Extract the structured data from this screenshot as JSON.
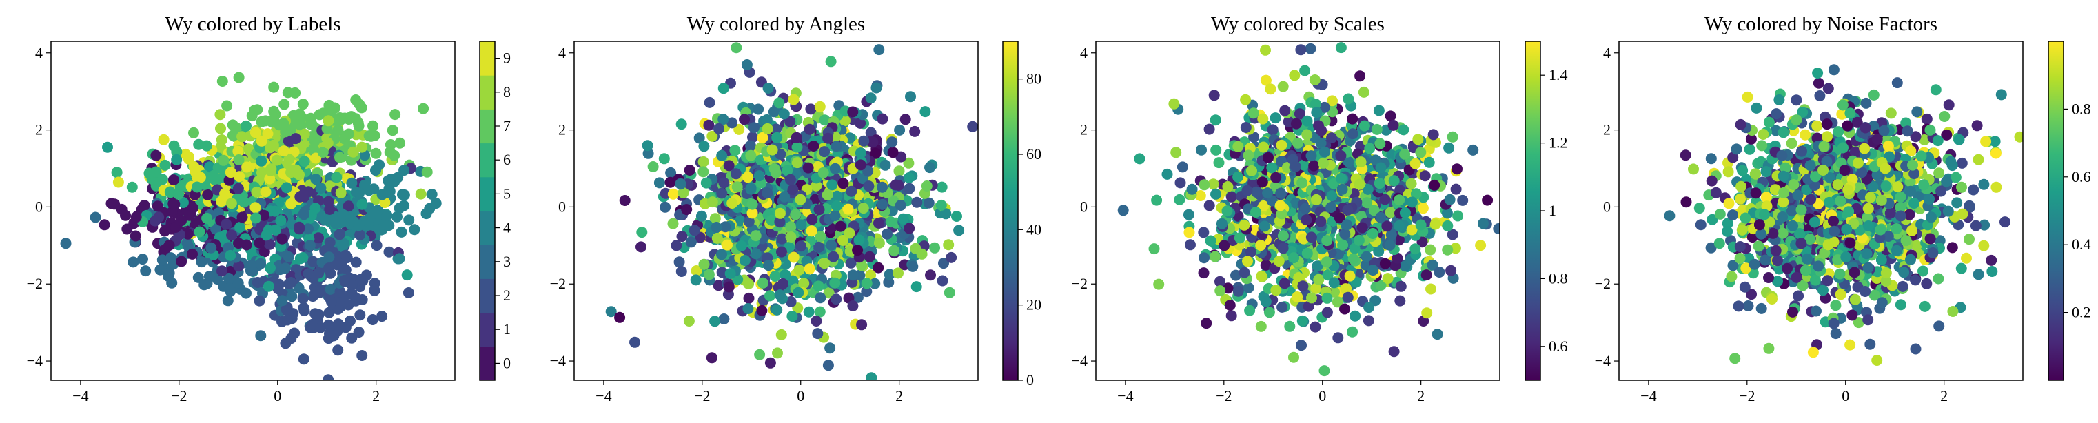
{
  "chart_data": [
    {
      "type": "scatter",
      "title": "Wy colored by Labels",
      "xlabel": "",
      "ylabel": "",
      "xlim": [
        -4.6,
        3.6
      ],
      "ylim": [
        -4.5,
        4.3
      ],
      "xticks": [
        -4,
        -2,
        0,
        2
      ],
      "yticks": [
        -4,
        -2,
        0,
        2,
        4
      ],
      "colorbar": {
        "kind": "discrete",
        "min": -0.5,
        "max": 9.5,
        "ticks": [
          0,
          1,
          2,
          3,
          4,
          5,
          6,
          7,
          8,
          9
        ]
      },
      "point_color": "class label (0-9)",
      "n_points_approx": 2000,
      "clusters": [
        {
          "label": 0,
          "center": [
            -1.6,
            -0.3
          ],
          "spread": [
            0.8,
            0.5
          ]
        },
        {
          "label": 1,
          "center": [
            0.0,
            0.1
          ],
          "spread": [
            1.0,
            0.8
          ]
        },
        {
          "label": 2,
          "center": [
            1.0,
            -2.2
          ],
          "spread": [
            0.6,
            0.8
          ]
        },
        {
          "label": 3,
          "center": [
            -0.8,
            -1.2
          ],
          "spread": [
            1.0,
            0.7
          ]
        },
        {
          "label": 4,
          "center": [
            1.6,
            -0.1
          ],
          "spread": [
            0.9,
            0.6
          ]
        },
        {
          "label": 5,
          "center": [
            -0.3,
            -0.3
          ],
          "spread": [
            1.0,
            0.7
          ]
        },
        {
          "label": 6,
          "center": [
            -1.0,
            0.6
          ],
          "spread": [
            0.9,
            0.5
          ]
        },
        {
          "label": 7,
          "center": [
            0.8,
            1.9
          ],
          "spread": [
            1.0,
            0.5
          ]
        },
        {
          "label": 8,
          "center": [
            0.2,
            1.2
          ],
          "spread": [
            0.8,
            0.5
          ]
        },
        {
          "label": 9,
          "center": [
            -0.7,
            0.8
          ],
          "spread": [
            0.8,
            0.5
          ]
        }
      ]
    },
    {
      "type": "scatter",
      "title": "Wy colored by Angles",
      "xlabel": "",
      "ylabel": "",
      "xlim": [
        -4.6,
        3.6
      ],
      "ylim": [
        -4.5,
        4.3
      ],
      "xticks": [
        -4,
        -2,
        0,
        2
      ],
      "yticks": [
        -4,
        -2,
        0,
        2,
        4
      ],
      "colorbar": {
        "kind": "continuous",
        "min": 0,
        "max": 90,
        "ticks": [
          0,
          20,
          40,
          60,
          80
        ]
      },
      "point_color": "rotation angle",
      "n_points_approx": 2000
    },
    {
      "type": "scatter",
      "title": "Wy colored by Scales",
      "xlabel": "",
      "ylabel": "",
      "xlim": [
        -4.6,
        3.6
      ],
      "ylim": [
        -4.5,
        4.3
      ],
      "xticks": [
        -4,
        -2,
        0,
        2
      ],
      "yticks": [
        -4,
        -2,
        0,
        2,
        4
      ],
      "colorbar": {
        "kind": "continuous",
        "min": 0.5,
        "max": 1.5,
        "ticks": [
          0.6,
          0.8,
          1.0,
          1.2,
          1.4
        ]
      },
      "point_color": "scale factor",
      "n_points_approx": 2000
    },
    {
      "type": "scatter",
      "title": "Wy colored by Noise Factors",
      "xlabel": "",
      "ylabel": "",
      "xlim": [
        -4.6,
        3.6
      ],
      "ylim": [
        -4.5,
        4.3
      ],
      "xticks": [
        -4,
        -2,
        0,
        2
      ],
      "yticks": [
        -4,
        -2,
        0,
        2,
        4
      ],
      "colorbar": {
        "kind": "continuous",
        "min": 0.0,
        "max": 1.0,
        "ticks": [
          0.2,
          0.4,
          0.6,
          0.8
        ]
      },
      "point_color": "noise factor",
      "n_points_approx": 2000
    }
  ],
  "colormap": {
    "name": "viridis",
    "stops": [
      "#440154",
      "#482878",
      "#3e4a89",
      "#31688e",
      "#26828e",
      "#1f9e89",
      "#35b779",
      "#6ece58",
      "#b5de2b",
      "#fde725"
    ]
  }
}
